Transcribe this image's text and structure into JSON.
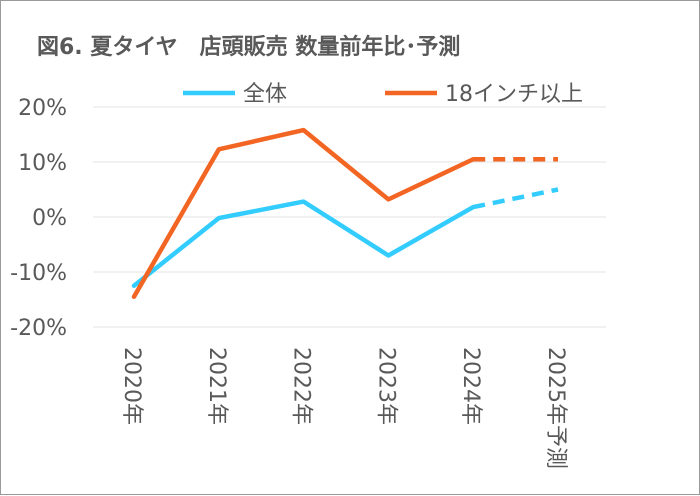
{
  "chart_data": {
    "type": "line",
    "title": "図6. 夏タイヤ　店頭販売 数量前年比･予測",
    "categories": [
      "2020年",
      "2021年",
      "2022年",
      "2023年",
      "2024年",
      "2025年予測"
    ],
    "ylim": [
      -20,
      20
    ],
    "yticks": [
      -20,
      -10,
      0,
      10,
      20
    ],
    "ytick_labels": [
      "-20%",
      "-10%",
      "0%",
      "10%",
      "20%"
    ],
    "grid": true,
    "legend_position": "top",
    "forecast_from_index": 4,
    "series": [
      {
        "name": "全体",
        "color": "#33CCFF",
        "values": [
          -12.5,
          -0.2,
          2.8,
          -7.0,
          1.8,
          5.0
        ]
      },
      {
        "name": "18インチ以上",
        "color": "#F26522",
        "values": [
          -14.5,
          12.3,
          15.8,
          3.2,
          10.5,
          10.5
        ]
      }
    ]
  }
}
